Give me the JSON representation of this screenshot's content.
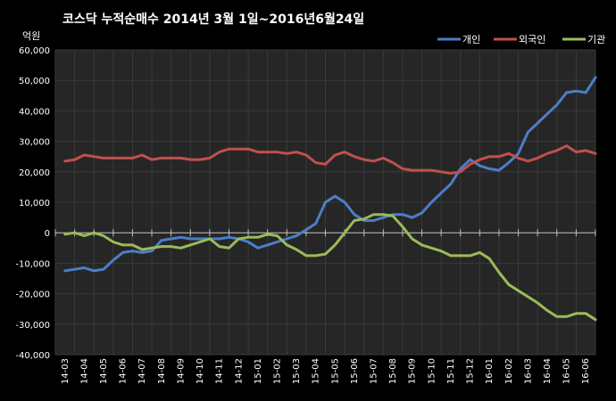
{
  "chart_data": {
    "type": "line",
    "title": "코스닥  누적순매수 2014년 3월 1일~2016년6월24일",
    "ylabel": "억원",
    "ylim": [
      -40000,
      60000
    ],
    "y_ticks": [
      {
        "value": 60000,
        "label": "60,000"
      },
      {
        "value": 50000,
        "label": "50,000"
      },
      {
        "value": 40000,
        "label": "40,000"
      },
      {
        "value": 30000,
        "label": "30,000"
      },
      {
        "value": 20000,
        "label": "20,000"
      },
      {
        "value": 10000,
        "label": "10,000"
      },
      {
        "value": 0,
        "label": "0"
      },
      {
        "value": -10000,
        "label": "-10,000"
      },
      {
        "value": -20000,
        "label": "-20,000"
      },
      {
        "value": -30000,
        "label": "-30,000"
      },
      {
        "value": -40000,
        "label": "-40,000"
      }
    ],
    "categories": [
      "14-03",
      "14-04",
      "14-05",
      "14-06",
      "14-07",
      "14-08",
      "14-09",
      "14-10",
      "14-11",
      "14-12",
      "15-01",
      "15-02",
      "15-03",
      "15-04",
      "15-05",
      "15-06",
      "15-07",
      "15-08",
      "15-09",
      "15-10",
      "15-11",
      "15-12",
      "16-01",
      "16-02",
      "16-03",
      "16-04",
      "16-05",
      "16-06"
    ],
    "x": [
      0,
      0.5,
      1,
      1.5,
      2,
      2.5,
      3,
      3.5,
      4,
      4.5,
      5,
      5.5,
      6,
      6.5,
      7,
      7.5,
      8,
      8.5,
      9,
      9.5,
      10,
      10.5,
      11,
      11.5,
      12,
      12.5,
      13,
      13.5,
      14,
      14.5,
      15,
      15.5,
      16,
      16.5,
      17,
      17.5,
      18,
      18.5,
      19,
      19.5,
      20,
      20.5,
      21,
      21.5,
      22,
      22.5,
      23,
      23.5,
      24,
      24.5,
      25,
      25.5,
      26,
      26.5,
      27,
      27.5
    ],
    "grid": true,
    "legend_position": "top-right",
    "series": [
      {
        "name": "개인",
        "color": "#4a7fc8",
        "values": [
          -12500,
          -12000,
          -11500,
          -12500,
          -12000,
          -9000,
          -6500,
          -6000,
          -6500,
          -6000,
          -2500,
          -2000,
          -1500,
          -2000,
          -2000,
          -2000,
          -2000,
          -1500,
          -2000,
          -3000,
          -5000,
          -4000,
          -3000,
          -2000,
          -1000,
          1000,
          3000,
          10000,
          12000,
          10000,
          6000,
          4000,
          4000,
          5000,
          6000,
          6000,
          5000,
          6500,
          10000,
          13000,
          16000,
          21000,
          24000,
          22000,
          21000,
          20500,
          23000,
          26000,
          33000,
          36000,
          39000,
          42000,
          46000,
          46500,
          46000,
          51000
        ]
      },
      {
        "name": "외국인",
        "color": "#c0504d",
        "values": [
          23500,
          24000,
          25500,
          25000,
          24500,
          24500,
          24500,
          24500,
          25500,
          24000,
          24500,
          24500,
          24500,
          24000,
          24000,
          24500,
          26500,
          27500,
          27500,
          27500,
          26500,
          26500,
          26500,
          26000,
          26500,
          25500,
          23000,
          22500,
          25500,
          26500,
          25000,
          24000,
          23500,
          24500,
          23000,
          21000,
          20500,
          20500,
          20500,
          20000,
          19500,
          20000,
          22500,
          24000,
          25000,
          25000,
          26000,
          24500,
          23500,
          24500,
          26000,
          27000,
          28500,
          26500,
          27000,
          26000
        ]
      },
      {
        "name": "기관",
        "color": "#9bbb59",
        "values": [
          -500,
          0,
          -1000,
          0,
          -1000,
          -3000,
          -4000,
          -4000,
          -5500,
          -5000,
          -4500,
          -4500,
          -5000,
          -4000,
          -3000,
          -2000,
          -4500,
          -5000,
          -2000,
          -1500,
          -1500,
          -500,
          -1000,
          -4000,
          -5500,
          -7500,
          -7500,
          -7000,
          -4000,
          0,
          4000,
          4500,
          6000,
          6000,
          5500,
          2000,
          -2000,
          -4000,
          -5000,
          -6000,
          -7500,
          -7500,
          -7500,
          -6500,
          -8500,
          -13000,
          -17000,
          -19000,
          -21000,
          -23000,
          -25500,
          -27500,
          -27500,
          -26500,
          -26500,
          -28500
        ]
      }
    ]
  }
}
